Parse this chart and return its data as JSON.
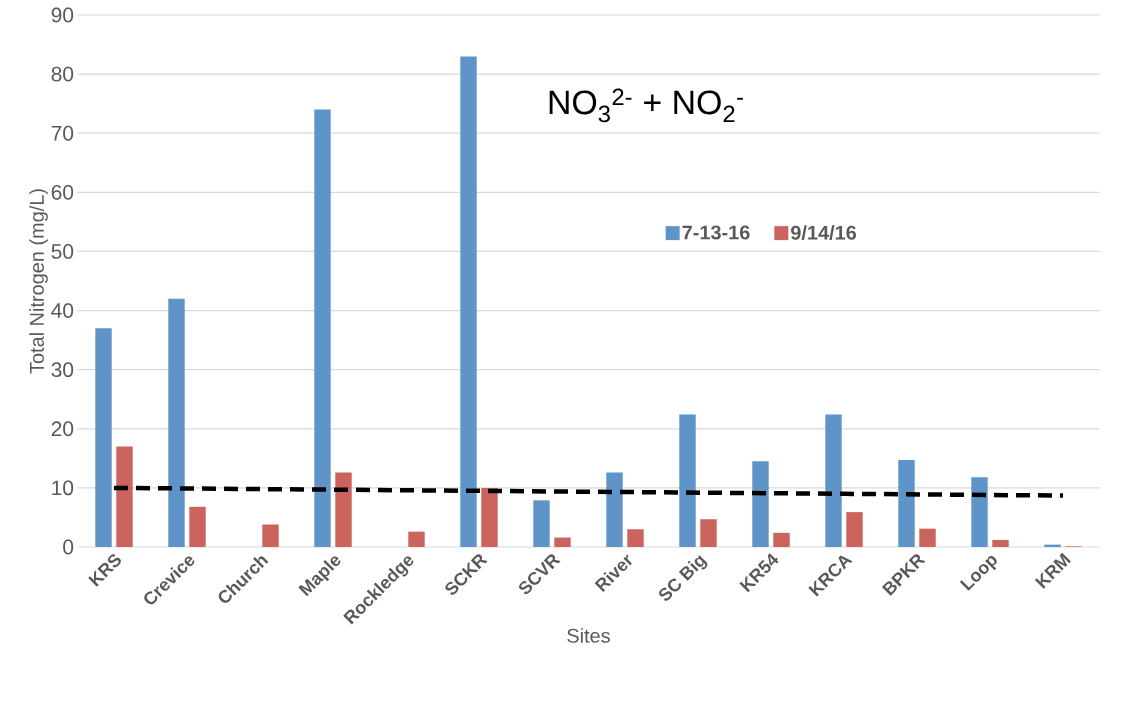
{
  "chart_data": {
    "type": "bar",
    "xlabel": "Sites",
    "ylabel": "Total Nitrogen (mg/L)",
    "categories": [
      "KRS",
      "Crevice",
      "Church",
      "Maple",
      "Rockledge",
      "SCKR",
      "SCVR",
      "River",
      "SC Big",
      "KR54",
      "KRCA",
      "BPKR",
      "Loop",
      "KRM"
    ],
    "series": [
      {
        "name": "7-13-16",
        "color": "#5f94c8",
        "values": [
          37,
          42,
          null,
          74,
          null,
          83,
          7.9,
          12.6,
          22.4,
          14.5,
          22.4,
          14.7,
          11.8,
          0.4
        ]
      },
      {
        "name": "9/14/16",
        "color": "#cc645e",
        "values": [
          17,
          6.8,
          3.8,
          12.6,
          2.6,
          10.0,
          1.6,
          3.0,
          4.7,
          2.4,
          5.9,
          3.1,
          1.2,
          0.1
        ]
      },
      {
        "type": "line",
        "color": "#000000",
        "line_style": "dashed",
        "values": [
          10.0,
          9.9,
          9.8,
          9.7,
          9.6,
          9.5,
          9.4,
          9.3,
          9.2,
          9.1,
          9.0,
          8.9,
          8.8,
          8.7
        ]
      }
    ],
    "ylim": [
      0,
      90
    ],
    "yticks": [
      0,
      10,
      20,
      30,
      40,
      50,
      60,
      70,
      80,
      90
    ],
    "grid": "y",
    "legend": "right",
    "annotations": [
      "NO$_{3}$$^{2-}$ + NO$_{2}$$^{-}$"
    ]
  }
}
